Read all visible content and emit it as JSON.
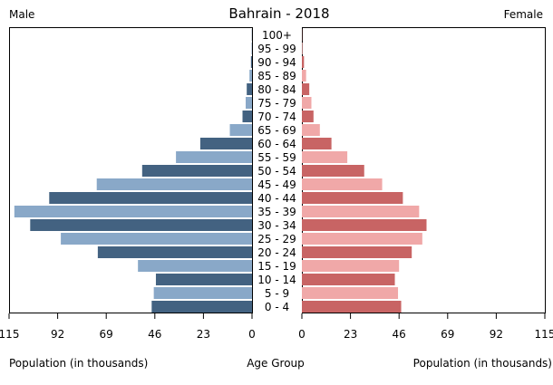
{
  "chart_data": {
    "type": "bar",
    "orientation": "horizontal-pyramid",
    "title": "Bahrain - 2018",
    "left_label": "Male",
    "right_label": "Female",
    "left_axis_label": "Population (in thousands)",
    "center_axis_label": "Age Group",
    "right_axis_label": "Population (in thousands)",
    "categories": [
      "0 - 4",
      "5 - 9",
      "10 - 14",
      "15 - 19",
      "20 - 24",
      "25 - 29",
      "30 - 34",
      "35 - 39",
      "40 - 44",
      "45 - 49",
      "50 - 54",
      "55 - 59",
      "60 - 64",
      "65 - 69",
      "70 - 74",
      "75 - 79",
      "80 - 84",
      "85 - 89",
      "90 - 94",
      "95 - 99",
      "100+"
    ],
    "series": [
      {
        "name": "Male",
        "side": "left",
        "values": [
          47.5,
          46.5,
          45.5,
          54.0,
          73.0,
          90.5,
          105.0,
          112.5,
          96.0,
          73.5,
          52.0,
          36.0,
          24.5,
          10.5,
          4.5,
          3.0,
          2.5,
          1.2,
          0.5,
          0.2,
          0.1
        ]
      },
      {
        "name": "Female",
        "side": "right",
        "values": [
          47.0,
          45.5,
          44.0,
          46.0,
          52.0,
          57.0,
          59.0,
          55.5,
          47.8,
          38.0,
          29.5,
          21.5,
          14.0,
          8.5,
          5.5,
          4.5,
          3.5,
          2.0,
          1.0,
          0.3,
          0.1
        ]
      }
    ],
    "ticks_left": [
      "115",
      "92",
      "69",
      "46",
      "23",
      "0"
    ],
    "ticks_right": [
      "0",
      "23",
      "46",
      "69",
      "92",
      "115"
    ],
    "xlim": [
      0,
      115
    ],
    "colors": {
      "male_dark": "#436281",
      "male_light": "#89a8c8",
      "female_dark": "#c86464",
      "female_light": "#f0a8a8"
    },
    "grid": false
  }
}
